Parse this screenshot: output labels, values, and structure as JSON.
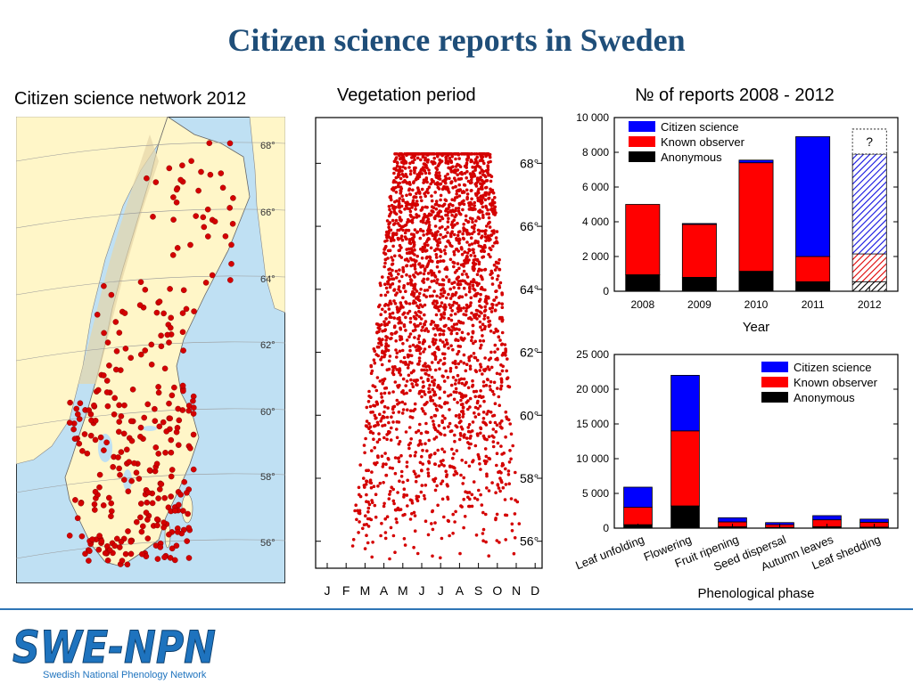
{
  "slide": {
    "title": "Citizen science reports in Sweden"
  },
  "map_panel": {
    "title": "Citizen science network 2012",
    "latitude_labels": [
      "68°",
      "66°",
      "64°",
      "62°",
      "60°",
      "58°",
      "56°"
    ]
  },
  "vegetation_panel": {
    "title": "Vegetation period",
    "month_labels": [
      "J",
      "F",
      "M",
      "A",
      "M",
      "J",
      "J",
      "A",
      "S",
      "O",
      "N",
      "D"
    ],
    "latitude_labels": [
      "68°",
      "66°",
      "64°",
      "62°",
      "60°",
      "58°",
      "56°"
    ]
  },
  "logo": {
    "wordmark": "SWE-NPN",
    "subtitle": "Swedish National Phenology Network"
  },
  "colors": {
    "title": "#1F4E79",
    "citizen_science": "#0000FF",
    "known_observer": "#FF0000",
    "anonymous": "#000000",
    "map_land": "#FFF6C8",
    "map_sea": "#BFE0F3",
    "dots": "#D40000"
  },
  "chart_data": [
    {
      "type": "bar",
      "stacked": true,
      "title": "№ of reports 2008 - 2012",
      "xlabel": "Year",
      "ylabel": "",
      "ylim": [
        0,
        10000
      ],
      "ytick_labels": [
        "0",
        "2 000",
        "4 000",
        "6 000",
        "8 000",
        "10 000"
      ],
      "categories": [
        "2008",
        "2009",
        "2010",
        "2011",
        "2012"
      ],
      "series": [
        {
          "name": "Anonymous",
          "values": [
            950,
            800,
            1150,
            550,
            550
          ]
        },
        {
          "name": "Known observer",
          "values": [
            4050,
            3050,
            6250,
            1450,
            1600
          ]
        },
        {
          "name": "Citizen science",
          "values": [
            0,
            50,
            150,
            6900,
            5750
          ]
        }
      ],
      "annotation": "?",
      "annotation_note_category": "2012",
      "legend_position": "top-left"
    },
    {
      "type": "bar",
      "stacked": true,
      "title": "",
      "xlabel": "Phenological phase",
      "ylabel": "",
      "ylim": [
        0,
        25000
      ],
      "ytick_labels": [
        "0",
        "5 000",
        "10 000",
        "15 000",
        "20 000",
        "25 000"
      ],
      "categories": [
        "Leaf unfolding",
        "Flowering",
        "Fruit ripening",
        "Seed dispersal",
        "Autumn leaves",
        "Leaf shedding"
      ],
      "series": [
        {
          "name": "Anonymous",
          "values": [
            500,
            3200,
            200,
            100,
            200,
            150
          ]
        },
        {
          "name": "Known observer",
          "values": [
            2500,
            10800,
            700,
            400,
            1000,
            700
          ]
        },
        {
          "name": "Citizen science",
          "values": [
            2900,
            8000,
            600,
            300,
            600,
            450
          ]
        }
      ],
      "legend_position": "top-right"
    }
  ]
}
